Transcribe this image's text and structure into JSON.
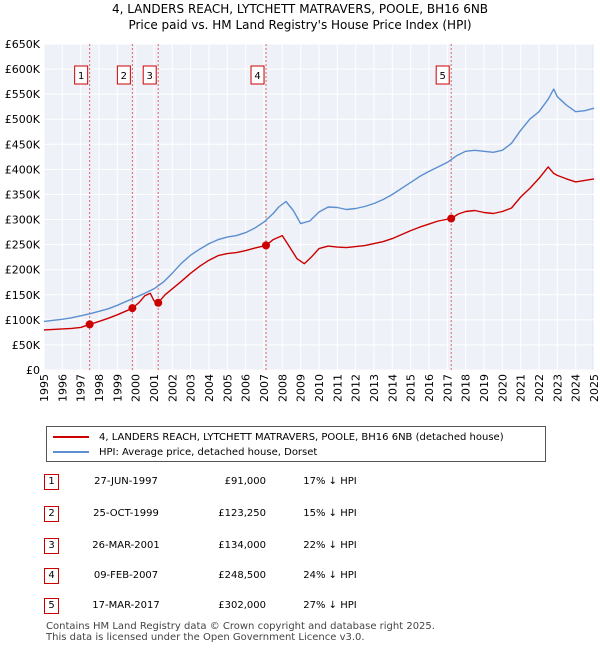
{
  "title_line1": "4, LANDERS REACH, LYTCHETT MATRAVERS, POOLE, BH16 6NB",
  "title_line2": "Price paid vs. HM Land Registry's House Price Index (HPI)",
  "legend": {
    "series1": "4, LANDERS REACH, LYTCHETT MATRAVERS, POOLE, BH16 6NB (detached house)",
    "series2": "HPI: Average price, detached house, Dorset"
  },
  "sales": [
    {
      "num": "1",
      "date": "27-JUN-1997",
      "price": "£91,000",
      "hpi": "17% ↓ HPI"
    },
    {
      "num": "2",
      "date": "25-OCT-1999",
      "price": "£123,250",
      "hpi": "15% ↓ HPI"
    },
    {
      "num": "3",
      "date": "26-MAR-2001",
      "price": "£134,000",
      "hpi": "22% ↓ HPI"
    },
    {
      "num": "4",
      "date": "09-FEB-2007",
      "price": "£248,500",
      "hpi": "24% ↓ HPI"
    },
    {
      "num": "5",
      "date": "17-MAR-2017",
      "price": "£302,000",
      "hpi": "27% ↓ HPI"
    }
  ],
  "footer": {
    "line1": "Contains HM Land Registry data © Crown copyright and database right 2025.",
    "line2": "This data is licensed under the Open Government Licence v3.0."
  },
  "chart_data": {
    "type": "line",
    "xlim": [
      1995,
      2025
    ],
    "ylim": [
      0,
      650000
    ],
    "y_ticks": [
      0,
      50000,
      100000,
      150000,
      200000,
      250000,
      300000,
      350000,
      400000,
      450000,
      500000,
      550000,
      600000,
      650000
    ],
    "y_tick_labels": [
      "£0",
      "£50K",
      "£100K",
      "£150K",
      "£200K",
      "£250K",
      "£300K",
      "£350K",
      "£400K",
      "£450K",
      "£500K",
      "£550K",
      "£600K",
      "£650K"
    ],
    "x_ticks": [
      1995,
      1996,
      1997,
      1998,
      1999,
      2000,
      2001,
      2002,
      2003,
      2004,
      2005,
      2006,
      2007,
      2008,
      2009,
      2010,
      2011,
      2012,
      2013,
      2014,
      2015,
      2016,
      2017,
      2018,
      2019,
      2020,
      2021,
      2022,
      2023,
      2024,
      2025
    ],
    "grid": true,
    "colors": {
      "property": "#cc0000",
      "hpi": "#5b8fd0",
      "vline": "#dd6666",
      "sale_band": "#dfe8f7"
    },
    "sale_points": [
      {
        "label": "1",
        "x": 1997.49,
        "y": 91000
      },
      {
        "label": "2",
        "x": 1999.82,
        "y": 123250
      },
      {
        "label": "3",
        "x": 2001.23,
        "y": 134000
      },
      {
        "label": "4",
        "x": 2007.11,
        "y": 248500
      },
      {
        "label": "5",
        "x": 2017.21,
        "y": 302000
      }
    ],
    "series": [
      {
        "name": "4, LANDERS REACH, LYTCHETT MATRAVERS, POOLE, BH16 6NB (detached house)",
        "x": [
          1995,
          1995.5,
          1996,
          1996.5,
          1997,
          1997.49,
          1998,
          1998.5,
          1999,
          1999.5,
          1999.82,
          2000.2,
          2000.5,
          2000.8,
          2001.0,
          2001.23,
          2001.6,
          2002.0,
          2002.5,
          2003.0,
          2003.5,
          2004.0,
          2004.5,
          2005.0,
          2005.5,
          2006.0,
          2006.5,
          2007.11,
          2007.5,
          2008.0,
          2008.4,
          2008.8,
          2009.2,
          2009.6,
          2010.0,
          2010.5,
          2011.0,
          2011.5,
          2012.0,
          2012.5,
          2013.0,
          2013.5,
          2014.0,
          2014.5,
          2015.0,
          2015.5,
          2016.0,
          2016.5,
          2017.21,
          2017.6,
          2018.0,
          2018.5,
          2019.0,
          2019.5,
          2020.0,
          2020.5,
          2021.0,
          2021.5,
          2022.0,
          2022.5,
          2022.8,
          2023.0,
          2023.5,
          2024.0,
          2024.5,
          2025.0
        ],
        "y": [
          80000,
          81000,
          82000,
          83000,
          85000,
          91000,
          97000,
          103000,
          110000,
          118000,
          123250,
          135000,
          148000,
          153000,
          138000,
          134000,
          150000,
          162000,
          177000,
          193000,
          207000,
          219000,
          228000,
          232000,
          234000,
          238000,
          243000,
          248500,
          260000,
          268000,
          245000,
          222000,
          212000,
          226000,
          242000,
          247000,
          245000,
          244000,
          246000,
          248000,
          252000,
          256000,
          262000,
          270000,
          278000,
          285000,
          291000,
          297000,
          302000,
          311000,
          316000,
          318000,
          314000,
          312000,
          316000,
          323000,
          345000,
          362000,
          382000,
          405000,
          392000,
          388000,
          381000,
          375000,
          378000,
          381000
        ]
      },
      {
        "name": "HPI: Average price, detached house, Dorset",
        "x": [
          1995,
          1995.5,
          1996,
          1996.5,
          1997,
          1997.5,
          1998,
          1998.5,
          1999,
          1999.5,
          2000,
          2000.5,
          2001,
          2001.5,
          2002,
          2002.5,
          2003,
          2003.5,
          2004,
          2004.5,
          2005,
          2005.5,
          2006,
          2006.5,
          2007,
          2007.5,
          2007.8,
          2008.2,
          2008.6,
          2009.0,
          2009.5,
          2010.0,
          2010.5,
          2011.0,
          2011.5,
          2012.0,
          2012.5,
          2013.0,
          2013.5,
          2014.0,
          2014.5,
          2015.0,
          2015.5,
          2016.0,
          2016.5,
          2017.0,
          2017.5,
          2018.0,
          2018.5,
          2019.0,
          2019.5,
          2020.0,
          2020.5,
          2021.0,
          2021.5,
          2022.0,
          2022.5,
          2022.8,
          2023.0,
          2023.5,
          2024.0,
          2024.5,
          2025.0
        ],
        "y": [
          97000,
          99000,
          101000,
          104000,
          108000,
          112000,
          117000,
          122000,
          129000,
          137000,
          145000,
          153000,
          162000,
          175000,
          193000,
          213000,
          229000,
          241000,
          252000,
          260000,
          265000,
          268000,
          274000,
          283000,
          295000,
          312000,
          325000,
          336000,
          318000,
          292000,
          297000,
          315000,
          325000,
          324000,
          320000,
          322000,
          326000,
          332000,
          340000,
          350000,
          362000,
          374000,
          386000,
          396000,
          405000,
          414000,
          427000,
          436000,
          438000,
          436000,
          434000,
          438000,
          452000,
          478000,
          500000,
          515000,
          540000,
          560000,
          545000,
          528000,
          515000,
          517000,
          522000
        ]
      }
    ]
  }
}
